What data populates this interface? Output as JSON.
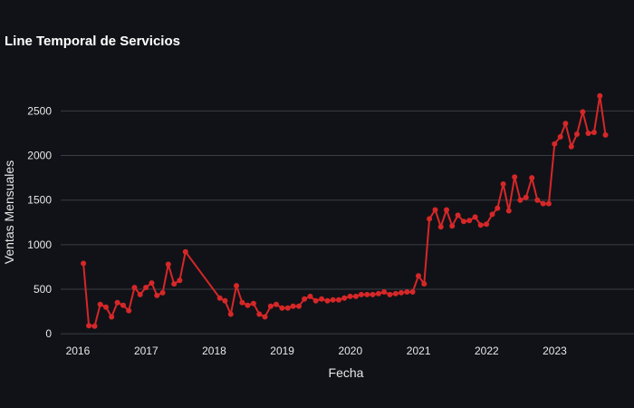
{
  "chart_data": {
    "type": "line",
    "title": "Line Temporal de Servicios",
    "xlabel": "Fecha",
    "ylabel": "Ventas Mensuales",
    "x_ticks": [
      "2016",
      "2017",
      "2018",
      "2019",
      "2020",
      "2021",
      "2022",
      "2023"
    ],
    "y_ticks": [
      "0",
      "500",
      "1000",
      "1500",
      "2000",
      "2500"
    ],
    "ylim": [
      -100,
      2850
    ],
    "xlim": [
      "2015-10-01",
      "2024-03-01"
    ],
    "grid": "horizontal",
    "background_color": "#111217",
    "line_color": "#d62728",
    "series": [
      {
        "x": [
          "2016-01-31",
          "2016-02-29",
          "2016-03-31",
          "2016-04-30",
          "2016-05-31",
          "2016-06-30",
          "2016-07-31",
          "2016-08-31",
          "2016-09-30",
          "2016-10-31",
          "2016-11-30",
          "2016-12-31",
          "2017-01-31",
          "2017-02-28",
          "2017-03-31",
          "2017-04-30",
          "2017-05-31",
          "2017-06-30",
          "2017-07-31",
          "2018-01-31",
          "2018-02-28",
          "2018-03-31",
          "2018-04-30",
          "2018-05-31",
          "2018-06-30",
          "2018-07-31",
          "2018-08-31",
          "2018-09-30",
          "2018-10-31",
          "2018-11-30",
          "2018-12-31",
          "2019-01-31",
          "2019-02-28",
          "2019-03-31",
          "2019-04-30",
          "2019-05-31",
          "2019-06-30",
          "2019-07-31",
          "2019-08-31",
          "2019-09-30",
          "2019-10-31",
          "2019-11-30",
          "2019-12-31",
          "2020-01-31",
          "2020-02-29",
          "2020-03-31",
          "2020-04-30",
          "2020-05-31",
          "2020-06-30",
          "2020-07-31",
          "2020-08-31",
          "2020-09-30",
          "2020-10-31",
          "2020-11-30",
          "2020-12-31",
          "2021-01-31",
          "2021-02-28",
          "2021-03-31",
          "2021-04-30",
          "2021-05-31",
          "2021-06-30",
          "2021-07-31",
          "2021-08-31",
          "2021-09-30",
          "2021-10-31",
          "2021-11-30",
          "2021-12-31",
          "2022-01-31",
          "2022-02-28",
          "2022-03-31",
          "2022-04-30",
          "2022-05-31",
          "2022-06-30",
          "2022-07-31",
          "2022-08-31",
          "2022-09-30",
          "2022-10-31",
          "2022-11-30",
          "2022-12-31",
          "2023-01-31",
          "2023-02-28",
          "2023-03-31",
          "2023-04-30",
          "2023-05-31",
          "2023-06-30",
          "2023-07-31",
          "2023-08-31",
          "2023-09-30"
        ],
        "y": [
          790,
          90,
          85,
          330,
          300,
          190,
          350,
          320,
          260,
          520,
          440,
          520,
          570,
          430,
          460,
          780,
          560,
          600,
          920,
          400,
          370,
          220,
          540,
          350,
          320,
          340,
          220,
          190,
          310,
          330,
          290,
          290,
          310,
          310,
          390,
          420,
          370,
          390,
          370,
          380,
          380,
          400,
          420,
          420,
          440,
          440,
          440,
          450,
          470,
          440,
          450,
          460,
          470,
          470,
          650,
          560,
          1290,
          1390,
          1200,
          1390,
          1210,
          1330,
          1260,
          1270,
          1310,
          1220,
          1230,
          1340,
          1410,
          1680,
          1380,
          1760,
          1500,
          1530,
          1750,
          1500,
          1460,
          1460,
          2130,
          2210,
          2360,
          2100,
          2240,
          2490,
          2250,
          2260,
          2670,
          2230
        ]
      }
    ]
  }
}
